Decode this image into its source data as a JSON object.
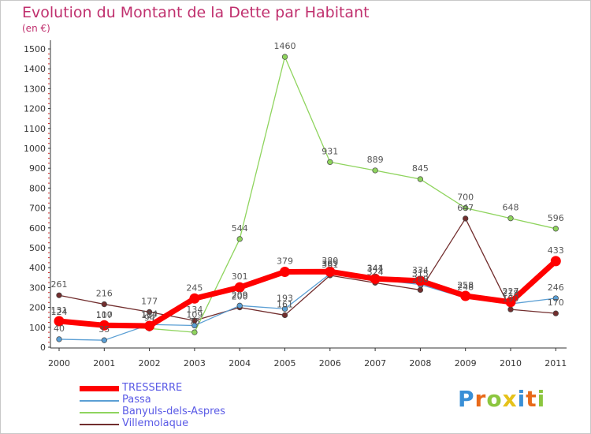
{
  "title": "Evolution du Montant de la Dette par Habitant",
  "subtitle": "(en €)",
  "logo": {
    "text": "Proxiti",
    "colors": [
      "#3a8fd6",
      "#e86a1a",
      "#8cc63f",
      "#e6c21a",
      "#3a8fd6",
      "#e86a1a",
      "#8cc63f"
    ]
  },
  "chart_data": {
    "type": "line",
    "x": [
      "2000",
      "2001",
      "2002",
      "2003",
      "2004",
      "2005",
      "2006",
      "2007",
      "2008",
      "2009",
      "2010",
      "2011"
    ],
    "ylim": [
      0,
      1500
    ],
    "yticks": [
      0,
      100,
      200,
      300,
      400,
      500,
      600,
      700,
      800,
      900,
      1000,
      1100,
      1200,
      1300,
      1400,
      1500
    ],
    "grid": false,
    "legend_position": "bottom-left",
    "series": [
      {
        "name": "Villemolaque",
        "color": "#722e2e",
        "values": [
          261,
          216,
          177,
          134,
          200,
          161,
          361,
          324,
          288,
          647,
          190,
          170
        ],
        "labels": [
          "261",
          "216",
          "177",
          "134",
          "200",
          "161",
          "361",
          "324",
          "288",
          "647",
          "190",
          "170"
        ]
      },
      {
        "name": "Banyuls-dels-Aspres",
        "color": "#8fd45e",
        "values": [
          124,
          107,
          94,
          75,
          544,
          1460,
          931,
          889,
          845,
          700,
          648,
          596
        ],
        "labels": [
          "124",
          "107",
          "94",
          "75",
          "544",
          "1460",
          "931",
          "889",
          "845",
          "700",
          "648",
          "596"
        ]
      },
      {
        "name": "Passa",
        "color": "#5b9fd4",
        "values": [
          40,
          35,
          114,
          109,
          209,
          193,
          369,
          341,
          315,
          248,
          218,
          246
        ],
        "labels": [
          "40",
          "35",
          "114",
          "109",
          "209",
          "193",
          "369",
          "341",
          "315",
          "248",
          "218",
          "246"
        ]
      },
      {
        "name": "TRESSERRE",
        "color": "#ff0000",
        "values": [
          131,
          110,
          107,
          245,
          301,
          379,
          380,
          344,
          334,
          258,
          227,
          433
        ],
        "labels": [
          "131",
          "110",
          "107",
          "245",
          "301",
          "379",
          "380",
          "344",
          "334",
          "258",
          "227",
          "433"
        ]
      }
    ],
    "legend": [
      "TRESSERRE",
      "Passa",
      "Banyuls-dels-Aspres",
      "Villemolaque"
    ]
  }
}
